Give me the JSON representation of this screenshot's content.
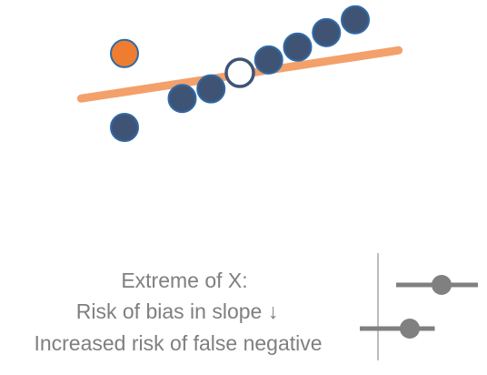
{
  "colors": {
    "point_fill": "#3f5475",
    "point_stroke": "#2f6aa6",
    "outlier_fill": "#ee7d31",
    "outlier_stroke": "#2f6aa6",
    "highlight_stroke": "#3f5475",
    "fit_line": "#f4a06a",
    "text": "#7f7f7f",
    "forest_line": "#808080",
    "forest_axis": "#a6a6a6"
  },
  "scatter": {
    "points": [
      {
        "x": 1.0,
        "y": 1.3,
        "kind": "normal"
      },
      {
        "x": 2.0,
        "y": 2.2,
        "kind": "normal"
      },
      {
        "x": 2.5,
        "y": 2.5,
        "kind": "normal"
      },
      {
        "x": 3.0,
        "y": 3.0,
        "kind": "hollow"
      },
      {
        "x": 3.5,
        "y": 3.4,
        "kind": "normal"
      },
      {
        "x": 4.0,
        "y": 3.8,
        "kind": "normal"
      },
      {
        "x": 4.5,
        "y": 4.25,
        "kind": "normal"
      },
      {
        "x": 5.0,
        "y": 4.65,
        "kind": "normal"
      },
      {
        "x": 1.0,
        "y": 3.6,
        "kind": "outlier"
      }
    ],
    "fit_line": {
      "x": [
        0.25,
        5.75
      ],
      "y": [
        2.2,
        3.7
      ]
    }
  },
  "caption": {
    "line1": "Extreme of X:",
    "line2": "Risk of bias in slope ",
    "line2_arrow": "↓",
    "line3": "Increased risk of false negative"
  },
  "forest": {
    "null_value": 0,
    "rows": [
      {
        "estimate": 1.4,
        "lower": 0.4,
        "upper": 2.2
      },
      {
        "estimate": 0.7,
        "lower": -0.4,
        "upper": 1.25
      }
    ]
  }
}
